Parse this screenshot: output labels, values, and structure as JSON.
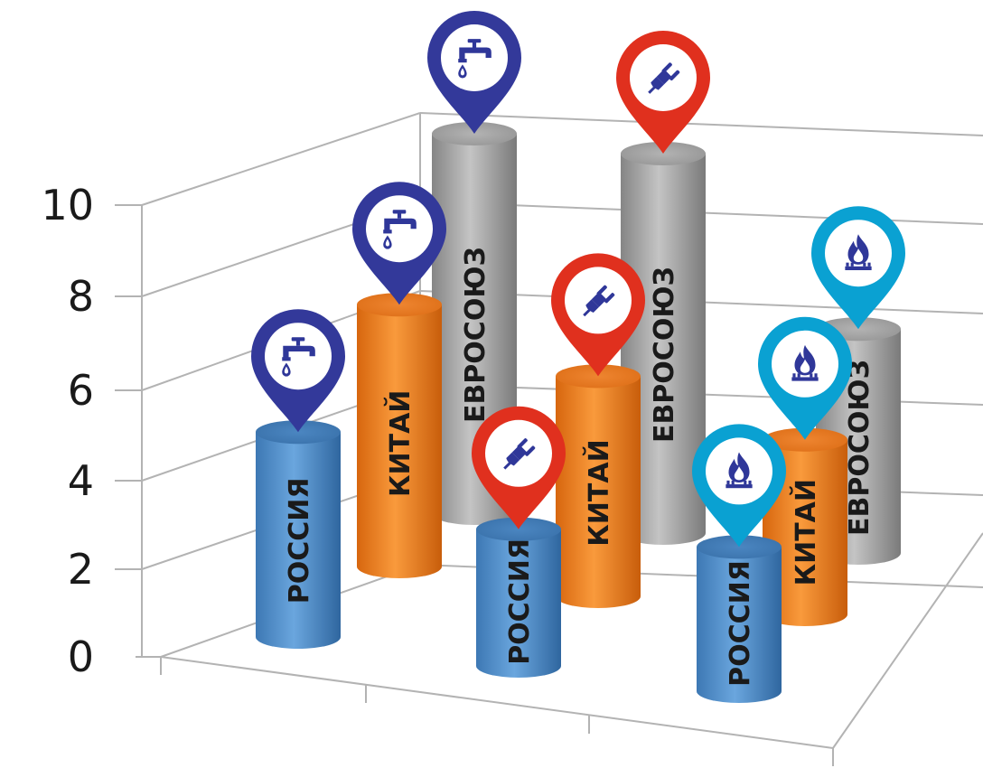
{
  "chart_data": {
    "type": "bar",
    "variant": "3d-cylinder",
    "title": "",
    "xlabel": "",
    "ylabel": "",
    "ylim": [
      0,
      10
    ],
    "yticks": [
      "0",
      "2",
      "4",
      "6",
      "8",
      "10"
    ],
    "grid": true,
    "categories": [
      "water",
      "electricity",
      "gas"
    ],
    "category_icons": [
      "faucet-icon",
      "plug-icon",
      "gas-flame-icon"
    ],
    "pin_colors": [
      "#33399a",
      "#e0301e",
      "#0aa1d2"
    ],
    "series": [
      {
        "name": "РОССИЯ",
        "color": "#5b9bd5",
        "values": [
          5.4,
          3.6,
          3.8
        ]
      },
      {
        "name": "КИТАЙ",
        "color": "#f28222",
        "values": [
          6.9,
          5.8,
          4.6
        ]
      },
      {
        "name": "ЕВРОСОЮЗ",
        "color": "#a6a6a6",
        "values": [
          10.0,
          10.0,
          5.9
        ]
      }
    ]
  }
}
